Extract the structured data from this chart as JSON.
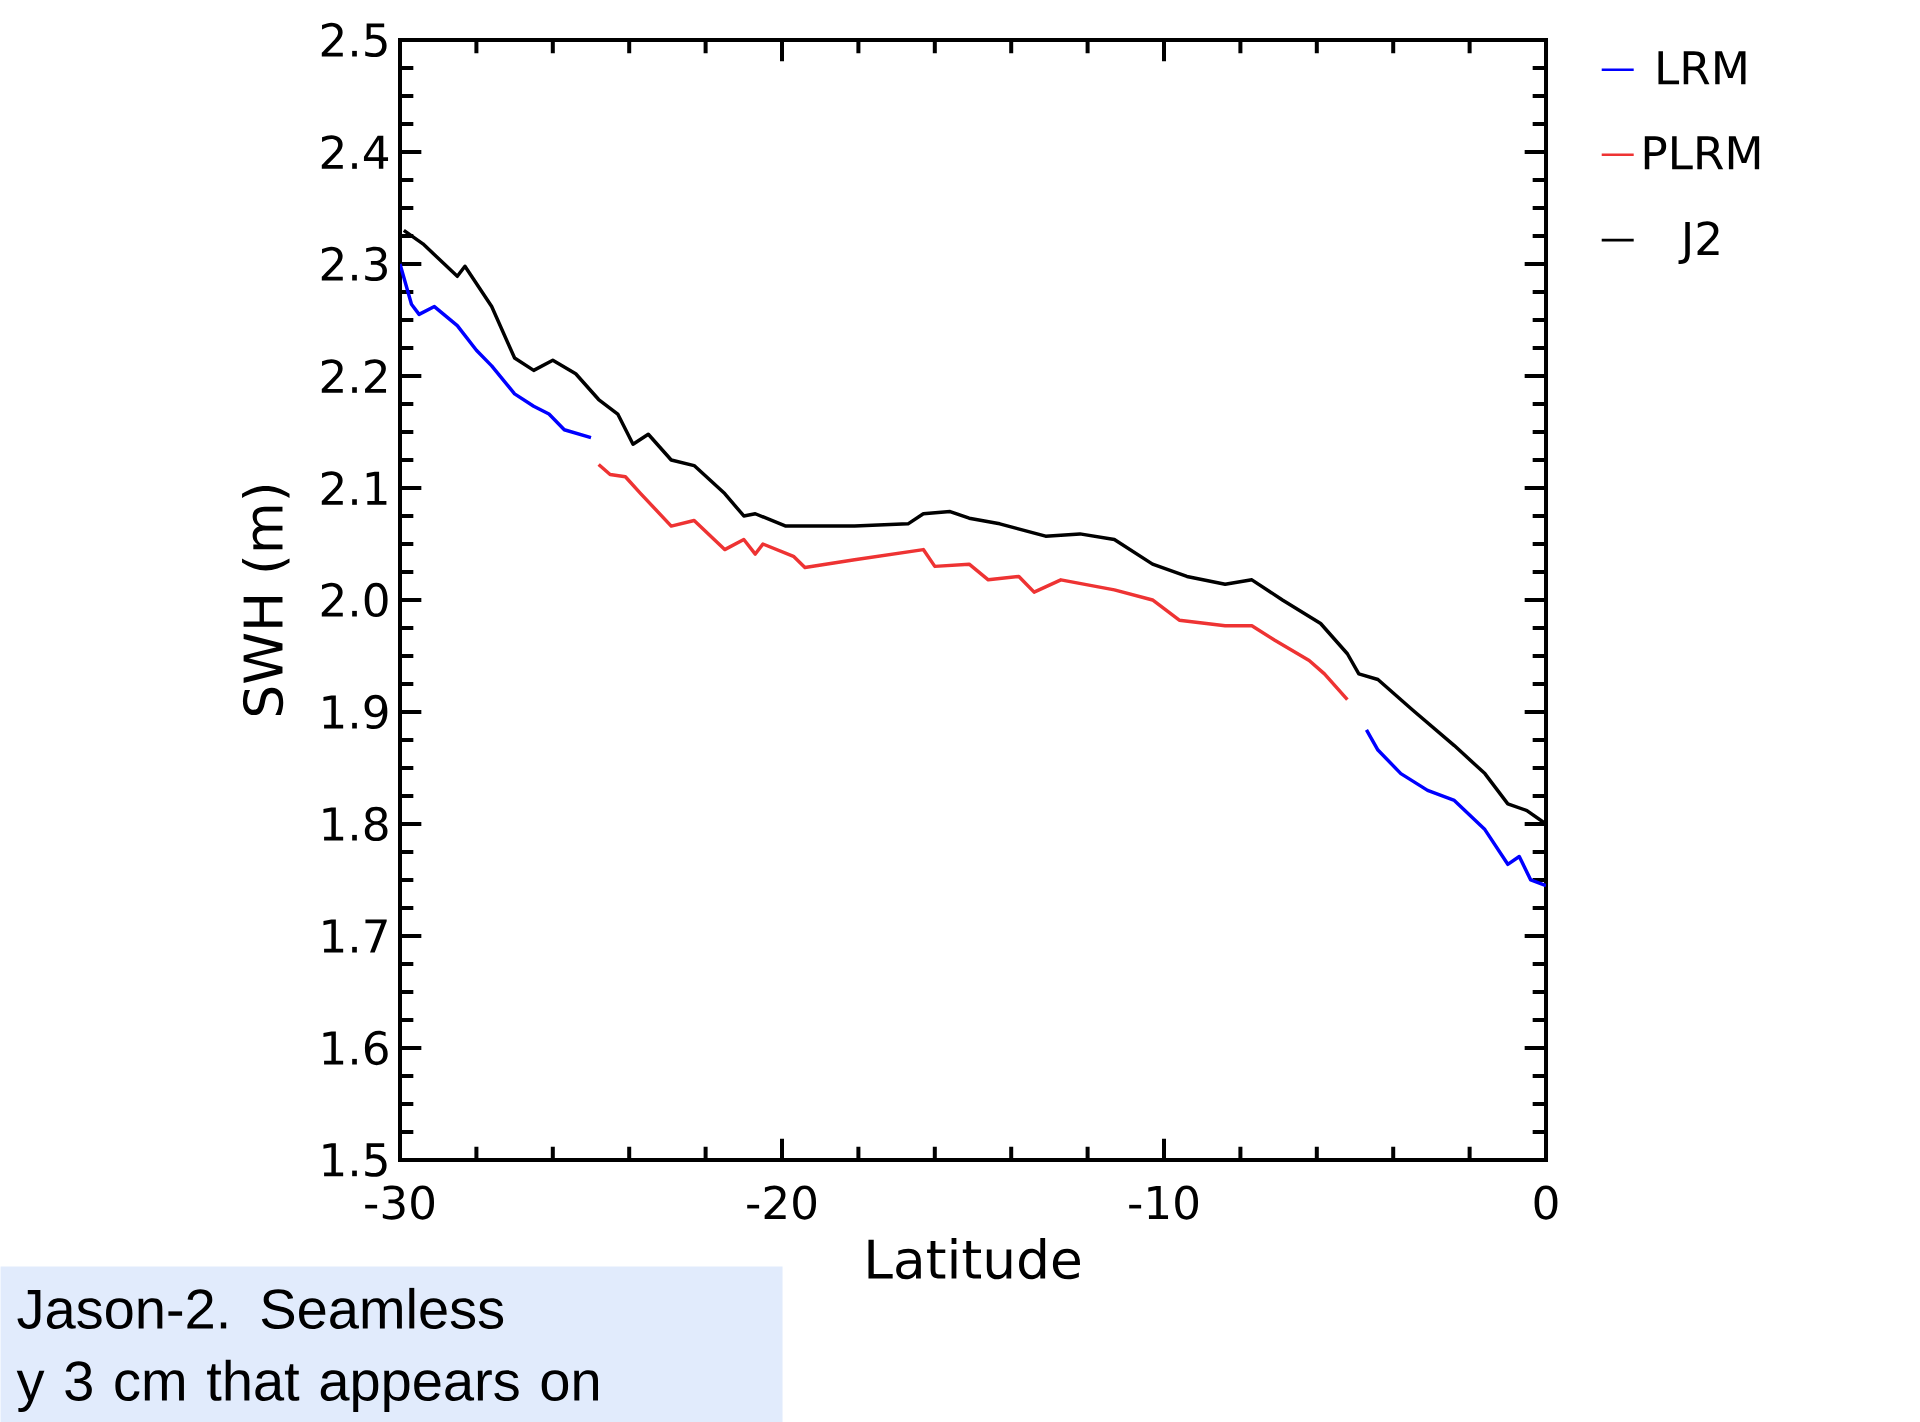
{
  "chart_data": {
    "type": "line",
    "xlabel": "Latitude",
    "ylabel": "SWH (m)",
    "xlim": [
      -30,
      0
    ],
    "ylim": [
      1.5,
      2.5
    ],
    "xticks": [
      -30,
      -20,
      -10,
      0
    ],
    "yticks": [
      1.5,
      1.6,
      1.7,
      1.8,
      1.9,
      {
        "value": 2,
        "label": "2.0"
      },
      2.1,
      2.2,
      2.3,
      2.4,
      2.5
    ],
    "legend": "right",
    "grid": false,
    "series": [
      {
        "name": "LRM",
        "color": "#0000ff",
        "x": [
          -30,
          -29.7,
          -29.5,
          -29.1,
          -28.5,
          -28.0,
          -27.6,
          -27.0,
          -26.5,
          -26.1,
          -25.7,
          -25.0,
          null,
          -4.7,
          -4.4,
          -3.8,
          -3.1,
          -2.4,
          -1.6,
          -1.0,
          -0.7,
          -0.4,
          0
        ],
        "values": [
          2.3,
          2.264,
          2.255,
          2.262,
          2.245,
          2.223,
          2.209,
          2.184,
          2.173,
          2.166,
          2.152,
          2.145,
          null,
          1.884,
          1.866,
          1.845,
          1.83,
          1.821,
          1.795,
          1.764,
          1.771,
          1.75,
          1.745
        ]
      },
      {
        "name": "PLRM",
        "color": "#ee3333",
        "x": [
          -24.8,
          -24.5,
          -24.1,
          -23.7,
          -22.9,
          -22.3,
          -21.5,
          -21.0,
          -20.7,
          -20.5,
          -19.7,
          -19.4,
          -18.1,
          -16.3,
          -16.0,
          -15.1,
          -14.6,
          -13.8,
          -13.4,
          -12.7,
          -11.3,
          -10.3,
          -9.6,
          -8.4,
          -7.7,
          -7.1,
          -6.2,
          -5.8,
          -5.2
        ],
        "values": [
          2.121,
          2.112,
          2.11,
          2.095,
          2.066,
          2.071,
          2.045,
          2.054,
          2.041,
          2.05,
          2.039,
          2.029,
          2.036,
          2.045,
          2.03,
          2.032,
          2.018,
          2.021,
          2.007,
          2.018,
          2.009,
          2.0,
          1.982,
          1.977,
          1.977,
          1.964,
          1.946,
          1.934,
          1.911
        ]
      },
      {
        "name": "J2",
        "color": "#000000",
        "x": [
          -29.9,
          -29.4,
          -28.5,
          -28.3,
          -27.6,
          -27.0,
          -26.5,
          -26.0,
          -25.4,
          -24.8,
          -24.3,
          -23.9,
          -23.5,
          -22.9,
          -22.3,
          -21.5,
          -21.0,
          -20.7,
          -19.9,
          -19.4,
          -18.1,
          -16.7,
          -16.3,
          -15.6,
          -15.1,
          -14.3,
          -13.1,
          -12.2,
          -11.3,
          -10.3,
          -9.4,
          -8.4,
          -7.7,
          -6.9,
          -5.9,
          -5.2,
          -4.9,
          -4.4,
          -3.5,
          -2.4,
          -1.6,
          -1.0,
          -0.5,
          0
        ],
        "values": [
          2.33,
          2.318,
          2.289,
          2.298,
          2.262,
          2.216,
          2.205,
          2.214,
          2.202,
          2.179,
          2.166,
          2.139,
          2.148,
          2.125,
          2.12,
          2.095,
          2.075,
          2.077,
          2.066,
          2.066,
          2.066,
          2.068,
          2.077,
          2.079,
          2.073,
          2.068,
          2.057,
          2.059,
          2.054,
          2.032,
          2.021,
          2.014,
          2.018,
          2.0,
          1.979,
          1.952,
          1.934,
          1.929,
          1.902,
          1.87,
          1.845,
          1.818,
          1.812,
          1.8
        ]
      }
    ],
    "annotations": [
      "Jason-2. Seamless",
      "y 3 cm that appears on"
    ]
  }
}
